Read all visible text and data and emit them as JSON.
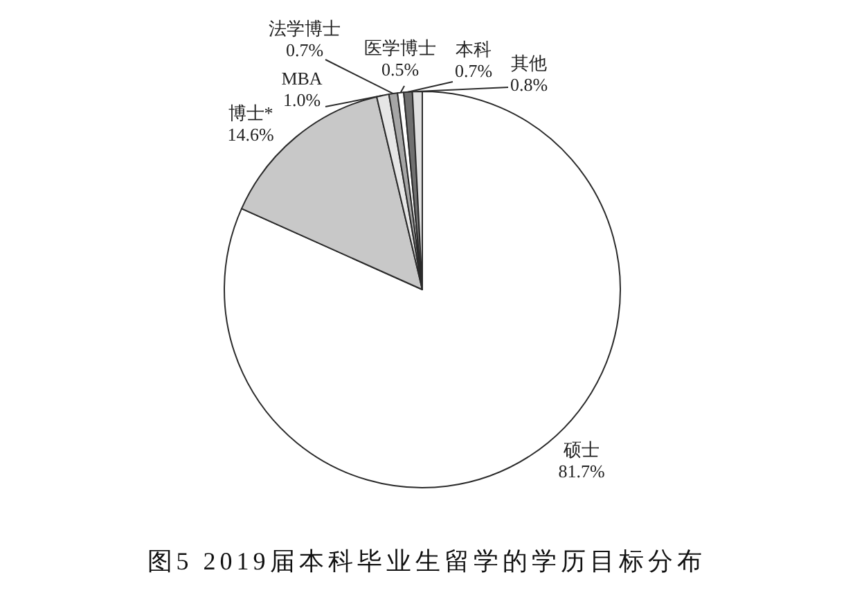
{
  "chart_data": {
    "type": "pie",
    "title": "图5 2019届本科毕业生留学的学历目标分布",
    "categories": [
      "硕士",
      "博士*",
      "MBA",
      "法学博士",
      "医学博士",
      "本科",
      "其他"
    ],
    "values": [
      81.7,
      14.6,
      1.0,
      0.7,
      0.5,
      0.7,
      0.8
    ],
    "colors": [
      "#ffffff",
      "#c8c8c8",
      "#e6e6e6",
      "#a6a6a6",
      "#ffffff",
      "#707070",
      "#e0e0e0"
    ],
    "value_labels": [
      "81.7%",
      "14.6%",
      "1.0%",
      "0.7%",
      "0.5%",
      "0.7%",
      "0.8%"
    ]
  }
}
